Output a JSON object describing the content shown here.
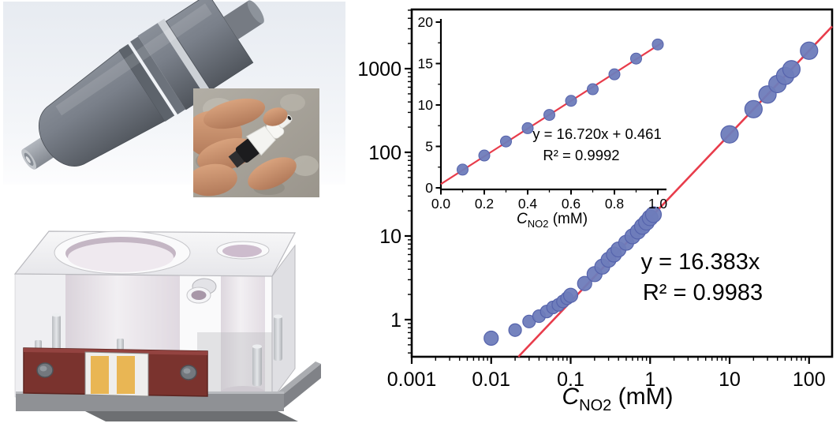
{
  "figure_alt": "NO2 microsensor: CAD renders, photo of assembled sensor, and amperometric calibration curves",
  "panels": {
    "sensor_cad": {
      "description": "3D CAD model of the cylindrical microsensor body"
    },
    "sensor_photo": {
      "description": "Photograph of the assembled white sensor tip held between fingers"
    },
    "flow_cell_cad": {
      "description": "3D CAD model of the transparent flow cell block with electrode chip"
    }
  },
  "colors": {
    "point_fill": "#6e7cba",
    "point_stroke": "#5563ac",
    "fit_line": "#e83c4b",
    "axis": "#000000",
    "background": "#ffffff"
  },
  "chart_data": [
    {
      "id": "main",
      "type": "scatter",
      "x_scale": "log",
      "y_scale": "log",
      "title": "",
      "xlabel": {
        "var": "C",
        "sub": "NO2",
        "unit": " (mM)"
      },
      "ylabel": "",
      "grid": false,
      "legend": null,
      "xlim": [
        0.001,
        195
      ],
      "ylim": [
        0.36,
        5100
      ],
      "x_tick_values": [
        0.001,
        0.01,
        0.1,
        1,
        10,
        100
      ],
      "x_tick_labels": [
        "0.001",
        "0.01",
        "0.1",
        "1",
        "10",
        "100"
      ],
      "y_tick_values": [
        1,
        10,
        100,
        1000
      ],
      "y_tick_labels": [
        "1",
        "10",
        "100",
        "1000"
      ],
      "points": [
        [
          0.01,
          0.6,
          9
        ],
        [
          0.02,
          0.75,
          8
        ],
        [
          0.03,
          0.95,
          8
        ],
        [
          0.04,
          1.1,
          8
        ],
        [
          0.05,
          1.25,
          8
        ],
        [
          0.06,
          1.4,
          8
        ],
        [
          0.07,
          1.5,
          8
        ],
        [
          0.08,
          1.65,
          8
        ],
        [
          0.09,
          1.8,
          8
        ],
        [
          0.1,
          1.95,
          9
        ],
        [
          0.15,
          2.7,
          9
        ],
        [
          0.2,
          3.5,
          9.5
        ],
        [
          0.25,
          4.3,
          9.5
        ],
        [
          0.3,
          5.2,
          9.5
        ],
        [
          0.35,
          6.0,
          9.5
        ],
        [
          0.4,
          6.9,
          9.5
        ],
        [
          0.5,
          8.3,
          9.5
        ],
        [
          0.6,
          9.9,
          9.5
        ],
        [
          0.7,
          11.3,
          9.5
        ],
        [
          0.8,
          13.0,
          10
        ],
        [
          0.9,
          14.6,
          10
        ],
        [
          1.0,
          16.5,
          10
        ],
        [
          1.1,
          18.0,
          10
        ],
        [
          10,
          164,
          11
        ],
        [
          20,
          328,
          11
        ],
        [
          30,
          491,
          11
        ],
        [
          40,
          655,
          11
        ],
        [
          50,
          819,
          11
        ],
        [
          60,
          983,
          11
        ],
        [
          100,
          1638,
          11
        ]
      ],
      "fit": {
        "slope": 16.383,
        "intercept": 0,
        "equation": "y = 16.383x",
        "r_squared": "R² = 0.9983"
      }
    },
    {
      "id": "inset",
      "type": "scatter",
      "x_scale": "linear",
      "y_scale": "linear",
      "title": "",
      "xlabel": {
        "var": "C",
        "sub": "NO2",
        "unit": " (mM)"
      },
      "ylabel": "",
      "grid": false,
      "legend": null,
      "xlim": [
        0.0,
        1.05
      ],
      "ylim": [
        0,
        20
      ],
      "x_tick_values": [
        0.0,
        0.2,
        0.4,
        0.6,
        0.8,
        1.0
      ],
      "x_tick_labels": [
        "0.0",
        "0.2",
        "0.4",
        "0.6",
        "0.8",
        "1.0"
      ],
      "y_tick_values": [
        0,
        5,
        10,
        15,
        20
      ],
      "y_tick_labels": [
        "0",
        "5",
        "10",
        "15",
        "20"
      ],
      "points": [
        [
          0.1,
          2.2
        ],
        [
          0.2,
          3.9
        ],
        [
          0.3,
          5.6
        ],
        [
          0.4,
          7.2
        ],
        [
          0.5,
          8.8
        ],
        [
          0.6,
          10.5
        ],
        [
          0.7,
          11.9
        ],
        [
          0.8,
          13.7
        ],
        [
          0.9,
          15.6
        ],
        [
          1.0,
          17.3
        ]
      ],
      "fit": {
        "slope": 16.72,
        "intercept": 0.461,
        "equation": "y = 16.720x + 0.461",
        "r_squared": "R² = 0.9992"
      }
    }
  ]
}
